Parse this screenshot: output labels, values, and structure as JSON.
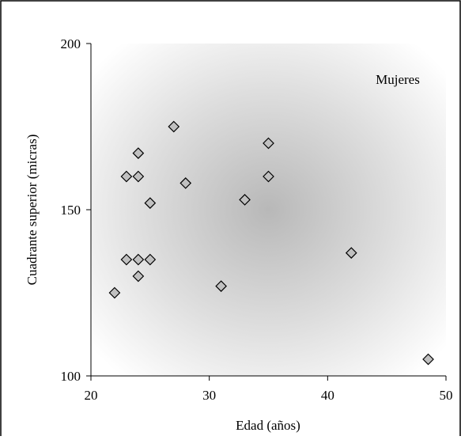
{
  "chart_data": {
    "type": "scatter",
    "annotation": "Mujeres",
    "xlabel": "Edad (años)",
    "ylabel": "Cuadrante superior (micras)",
    "xlim": [
      20,
      50
    ],
    "ylim": [
      100,
      200
    ],
    "xticks": [
      20,
      30,
      40,
      50
    ],
    "yticks": [
      100,
      150,
      200
    ],
    "grid": false,
    "marker": "diamond",
    "marker_fill": "#c0c0c0",
    "marker_stroke": "#000000",
    "points": [
      {
        "x": 22,
        "y": 125
      },
      {
        "x": 23,
        "y": 160
      },
      {
        "x": 23,
        "y": 135
      },
      {
        "x": 24,
        "y": 167
      },
      {
        "x": 24,
        "y": 160
      },
      {
        "x": 24,
        "y": 135
      },
      {
        "x": 24,
        "y": 130
      },
      {
        "x": 25,
        "y": 152
      },
      {
        "x": 25,
        "y": 135
      },
      {
        "x": 27,
        "y": 175
      },
      {
        "x": 28,
        "y": 158
      },
      {
        "x": 31,
        "y": 127
      },
      {
        "x": 33,
        "y": 153
      },
      {
        "x": 35,
        "y": 170
      },
      {
        "x": 35,
        "y": 160
      },
      {
        "x": 42,
        "y": 137
      },
      {
        "x": 48.5,
        "y": 105
      }
    ]
  }
}
